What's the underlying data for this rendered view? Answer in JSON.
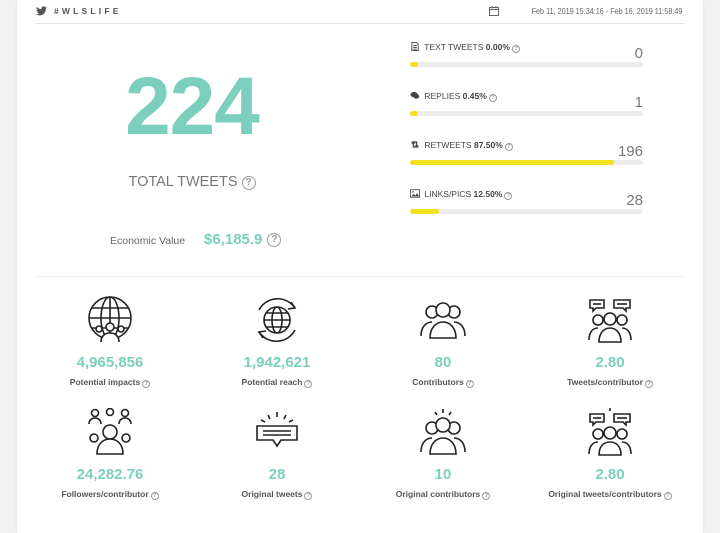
{
  "header": {
    "hashtag": "#WLSLIFE",
    "date_range": "Feb 11, 2019 15:34:16 - Feb 16, 2019 11:58:49"
  },
  "summary": {
    "total_tweets": "224",
    "total_label": "TOTAL TWEETS",
    "economic_label": "Economic Value",
    "economic_value": "$6,185.9"
  },
  "stats": [
    {
      "label": "TEXT TWEETS",
      "pct": "0.00%",
      "count": "0",
      "fraction": 0.035,
      "icon": "document-icon"
    },
    {
      "label": "REPLIES",
      "pct": "0.45%",
      "count": "1",
      "fraction": 0.035,
      "icon": "comments-icon"
    },
    {
      "label": "RETWEETS",
      "pct": "87.50%",
      "count": "196",
      "fraction": 0.875,
      "icon": "retweet-icon"
    },
    {
      "label": "LINKS/PICS",
      "pct": "12.50%",
      "count": "28",
      "fraction": 0.125,
      "icon": "image-icon"
    }
  ],
  "metrics": [
    {
      "value": "4,965,856",
      "label": "Potential impacts",
      "icon": "globe-people-icon"
    },
    {
      "value": "1,942,621",
      "label": "Potential reach",
      "icon": "globe-refresh-icon"
    },
    {
      "value": "80",
      "label": "Contributors",
      "icon": "group-icon"
    },
    {
      "value": "2.80",
      "label": "Tweets/contributor",
      "icon": "group-chat-icon"
    },
    {
      "value": "24,282.76",
      "label": "Followers/contributor",
      "icon": "followers-icon"
    },
    {
      "value": "28",
      "label": "Original tweets",
      "icon": "original-tweet-icon"
    },
    {
      "value": "10",
      "label": "Original contributors",
      "icon": "group-highlight-icon"
    },
    {
      "value": "2.80",
      "label": "Original tweets/contributors",
      "icon": "group-chat-highlight-icon"
    }
  ],
  "colors": {
    "accent": "#7ccfbd",
    "bar": "#f2e01d",
    "track": "#ececec"
  }
}
